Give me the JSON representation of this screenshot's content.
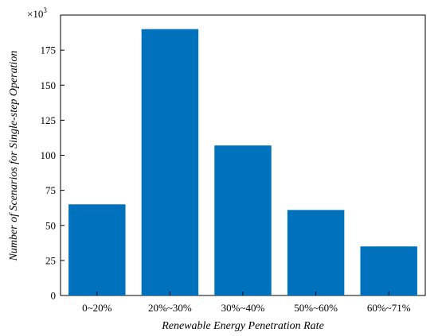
{
  "chart_data": {
    "type": "bar",
    "categories": [
      "0~20%",
      "20%~30%",
      "30%~40%",
      "50%~60%",
      "60%~71%"
    ],
    "values": [
      65,
      190,
      107,
      61,
      35
    ],
    "xlabel": "Renewable Energy Penetration Rate",
    "ylabel": "Number of Scenarios for Single-step Operation",
    "ylim": [
      0,
      200
    ],
    "yticks": [
      0,
      25,
      50,
      75,
      100,
      125,
      150,
      175
    ],
    "y_multiplier": {
      "base": "×10",
      "exponent": "3"
    },
    "bar_color": "#0072bd",
    "grid": false,
    "legend": "none"
  }
}
